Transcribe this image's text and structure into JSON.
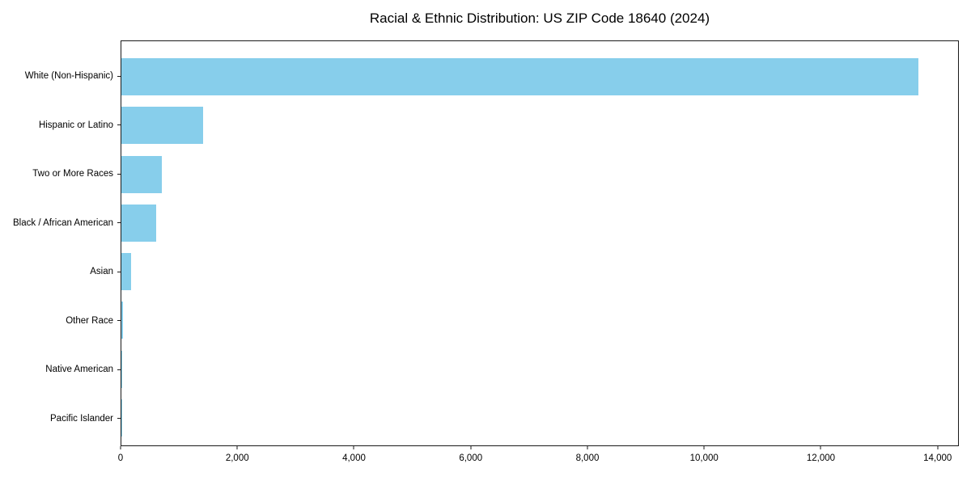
{
  "chart_data": {
    "type": "bar",
    "orientation": "horizontal",
    "title": "Racial & Ethnic Distribution: US ZIP Code 18640 (2024)",
    "categories": [
      "White (Non-Hispanic)",
      "Hispanic or Latino",
      "Two or More Races",
      "Black / African American",
      "Asian",
      "Other Race",
      "Native American",
      "Pacific Islander"
    ],
    "values": [
      13680,
      1410,
      690,
      600,
      170,
      25,
      8,
      4
    ],
    "xlabel": "",
    "ylabel": "",
    "xlim": [
      0,
      14364
    ],
    "x_ticks": [
      0,
      2000,
      4000,
      6000,
      8000,
      10000,
      12000,
      14000
    ],
    "x_tick_labels": [
      "0",
      "2,000",
      "4,000",
      "6,000",
      "8,000",
      "10,000",
      "12,000",
      "14,000"
    ],
    "bar_color": "#87CEEB",
    "frame_color": "#1a1a1a",
    "background_color": "#ffffff",
    "grid": false,
    "legend": false
  }
}
